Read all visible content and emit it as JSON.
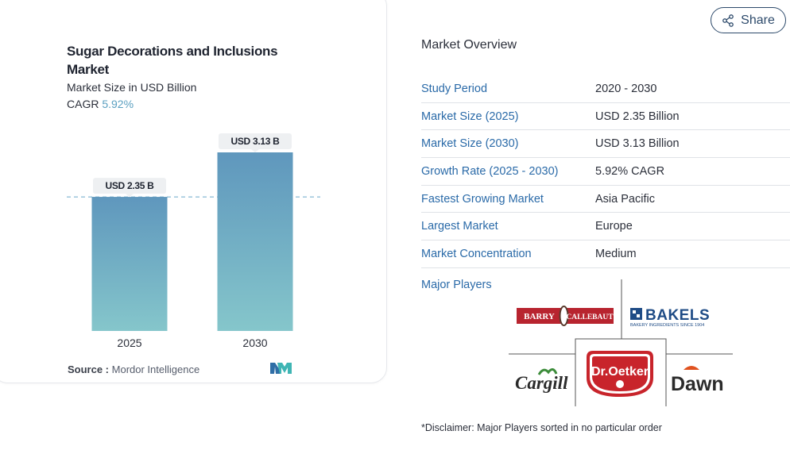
{
  "chart": {
    "title": "Sugar Decorations and Inclusions Market",
    "subtitle": "Market Size in USD Billion",
    "cagr_label": "CAGR",
    "cagr_value": "5.92%",
    "source_label": "Source :",
    "source_value": "Mordor Intelligence",
    "logo_text": "MI"
  },
  "chart_data": {
    "type": "bar",
    "title": "Sugar Decorations and Inclusions Market",
    "subtitle": "Market Size in USD Billion",
    "categories": [
      "2025",
      "2030"
    ],
    "values": [
      2.35,
      3.13
    ],
    "data_labels": [
      "USD 2.35 B",
      "USD 3.13 B"
    ],
    "ylim": [
      0,
      3.13
    ],
    "reference_line": 2.35,
    "colors": {
      "bar_top": "#5f97bd",
      "bar_bottom": "#85c6cb",
      "label_bg": "#eef0f2",
      "ref_line": "#6aa6c9"
    }
  },
  "share": {
    "label": "Share",
    "icon": "share-icon"
  },
  "overview": {
    "title": "Market Overview",
    "rows": [
      {
        "key": "Study Period",
        "value": "2020 - 2030"
      },
      {
        "key": "Market Size (2025)",
        "value": "USD 2.35 Billion"
      },
      {
        "key": "Market Size (2030)",
        "value": "USD 3.13 Billion"
      },
      {
        "key": "Growth Rate (2025 - 2030)",
        "value": "5.92% CAGR"
      },
      {
        "key": "Fastest Growing Market",
        "value": "Asia Pacific"
      },
      {
        "key": "Largest Market",
        "value": "Europe"
      },
      {
        "key": "Market Concentration",
        "value": "Medium"
      }
    ]
  },
  "players": {
    "label": "Major Players",
    "logos": {
      "barry_callebaut_left": "BARRY",
      "barry_callebaut_right": "CALLEBAUT",
      "bakels": "BAKELS",
      "bakels_tagline": "BAKERY INGREDIENTS SINCE 1904",
      "cargill": "Cargill",
      "dr_oetker": "Dr.Oetker",
      "dawn": "Dawn"
    }
  },
  "disclaimer": "*Disclaimer: Major Players sorted in no particular order",
  "colors": {
    "accent": "#2a6aa8",
    "share_border": "#2d4a6b",
    "cagr": "#5a9fc0"
  }
}
